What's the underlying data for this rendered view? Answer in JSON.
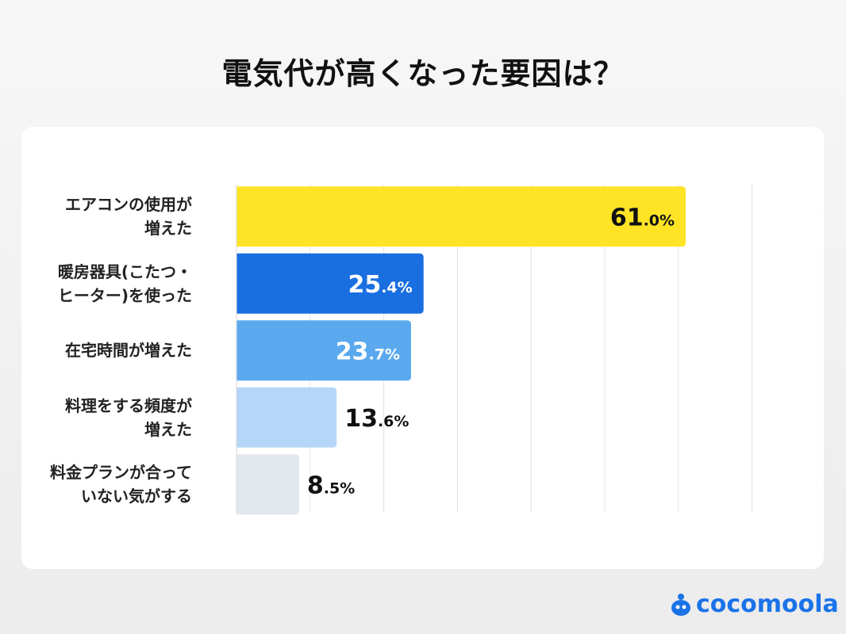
{
  "title": "電気代が高くなった要因は？",
  "brand": "cocomoola",
  "chart_data": {
    "type": "bar",
    "orientation": "horizontal",
    "title": "電気代が高くなった要因は？",
    "categories": [
      "エアコンの使用が\n増えた",
      "暖房器具(こたつ・\nヒーター)を使った",
      "在宅時間が増えた",
      "料理をする頻度が\n増えた",
      "料金プランが合って\nいない気がする"
    ],
    "values": [
      61.0,
      25.4,
      23.7,
      13.6,
      8.5
    ],
    "labels": [
      "61.0%",
      "25.4%",
      "23.7%",
      "13.6%",
      "8.5%"
    ],
    "colors": [
      "#FFE426",
      "#1A6FE0",
      "#5AA9EE",
      "#B6D6F8",
      "#E3E7EE"
    ],
    "xlim": [
      0,
      70
    ],
    "grid": true,
    "unit": "%"
  }
}
